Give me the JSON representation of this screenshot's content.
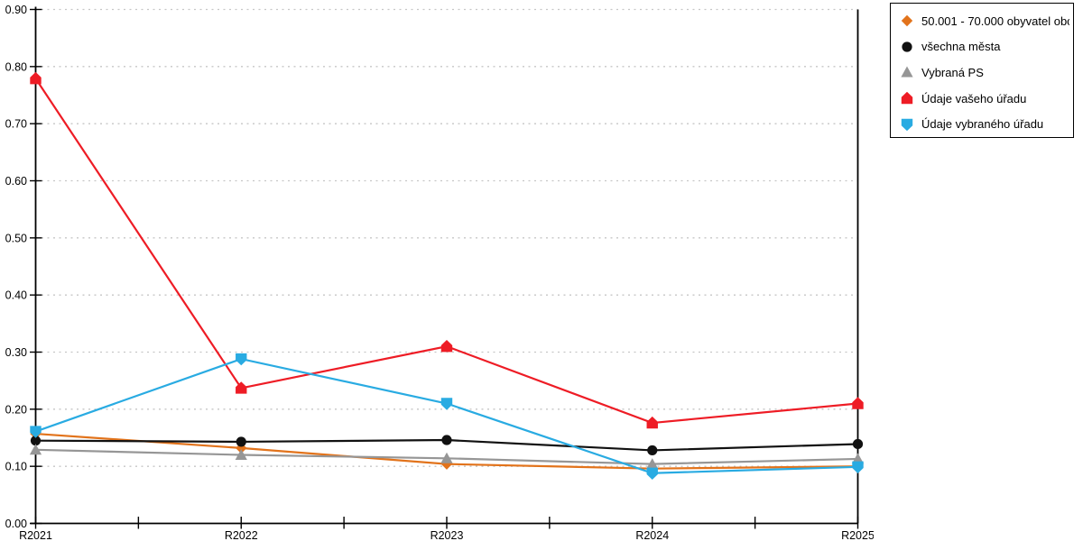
{
  "chart_data": {
    "type": "line",
    "title": "",
    "xlabel": "",
    "ylabel": "",
    "categories": [
      "R2021",
      "R2022",
      "R2023",
      "R2024",
      "R2025"
    ],
    "series": [
      {
        "name": "50.001 - 70.000 obyvatel obc...",
        "marker": "diamond",
        "color": "#e2731b",
        "values": [
          0.157,
          0.132,
          0.104,
          0.096,
          0.1
        ]
      },
      {
        "name": "všechna města",
        "marker": "circle",
        "color": "#111111",
        "values": [
          0.145,
          0.143,
          0.146,
          0.128,
          0.139
        ]
      },
      {
        "name": "Vybraná PS",
        "marker": "triangle-up",
        "color": "#969696",
        "values": [
          0.129,
          0.12,
          0.114,
          0.104,
          0.113
        ]
      },
      {
        "name": "Údaje vašeho úřadu",
        "marker": "pentagon-up",
        "color": "#ee1c25",
        "values": [
          0.779,
          0.237,
          0.31,
          0.176,
          0.21
        ]
      },
      {
        "name": "Údaje vybraného úřadu",
        "marker": "pentagon-down",
        "color": "#29abe2",
        "values": [
          0.161,
          0.288,
          0.21,
          0.088,
          0.099
        ]
      }
    ],
    "ylim": [
      0.0,
      0.9
    ],
    "ytick_step": 0.1,
    "ytick_labels": [
      "0.00",
      "0.10",
      "0.20",
      "0.30",
      "0.40",
      "0.50",
      "0.60",
      "0.70",
      "0.80",
      "0.90"
    ],
    "grid": "horizontal-dashed",
    "gridline_color": "#c6c6c6",
    "axis_color": "#000000",
    "legend_position": "outside-top-right"
  }
}
